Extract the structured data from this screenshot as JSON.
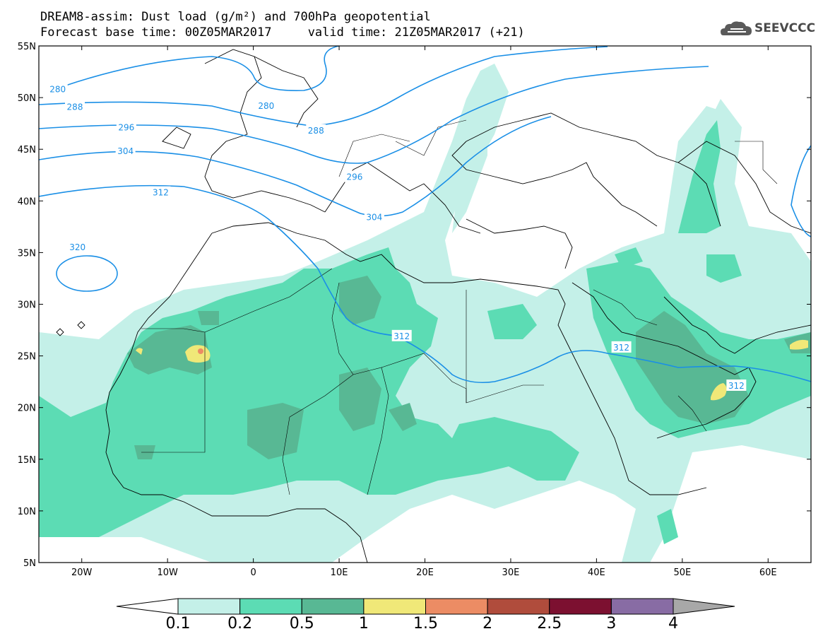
{
  "title": {
    "line1": "DREAM8-assim: Dust load (g/m²) and 700hPa geopotential",
    "line2": "Forecast base time: 00Z05MAR2017     valid time: 21Z05MAR2017 (+21)"
  },
  "logo": {
    "text": "SEEVCCC",
    "icon": "cloud-icon"
  },
  "axes": {
    "lat_labels": [
      "55N",
      "50N",
      "45N",
      "40N",
      "35N",
      "30N",
      "25N",
      "20N",
      "15N",
      "10N",
      "5N"
    ],
    "lon_labels": [
      "20W",
      "10W",
      "0",
      "10E",
      "20E",
      "30E",
      "40E",
      "50E",
      "60E"
    ],
    "lon_range": [
      -25,
      65
    ],
    "lat_range": [
      5,
      55
    ]
  },
  "contours": {
    "labels": [
      "280",
      "288",
      "296",
      "304",
      "312",
      "320"
    ],
    "map_labels": [
      {
        "text": "280",
        "lon": -22.8,
        "lat": 50.8
      },
      {
        "text": "280",
        "lon": 1.5,
        "lat": 49.2
      },
      {
        "text": "288",
        "lon": -20.8,
        "lat": 49.1
      },
      {
        "text": "288",
        "lon": 7.3,
        "lat": 46.8
      },
      {
        "text": "296",
        "lon": -14.8,
        "lat": 47.1
      },
      {
        "text": "296",
        "lon": 11.8,
        "lat": 42.3
      },
      {
        "text": "304",
        "lon": -14.9,
        "lat": 44.8
      },
      {
        "text": "304",
        "lon": 14.1,
        "lat": 38.4
      },
      {
        "text": "312",
        "lon": -10.8,
        "lat": 40.8
      },
      {
        "text": "312",
        "lon": 17.3,
        "lat": 26.9
      },
      {
        "text": "312",
        "lon": 42.9,
        "lat": 25.8
      },
      {
        "text": "312",
        "lon": 56.3,
        "lat": 22.1
      },
      {
        "text": "320",
        "lon": -20.5,
        "lat": 35.5
      }
    ],
    "color": "#1a8fe6"
  },
  "colorbar": {
    "labels": [
      "0.1",
      "0.2",
      "0.5",
      "1",
      "1.5",
      "2",
      "2.5",
      "3",
      "4"
    ],
    "colors": [
      "#c4f0e8",
      "#5cdcb4",
      "#58b894",
      "#f0e878",
      "#ec8c64",
      "#b04c3c",
      "#7c1030",
      "#886ca4"
    ],
    "end_low": "#ffffff",
    "end_high": "#a8a8a8"
  }
}
